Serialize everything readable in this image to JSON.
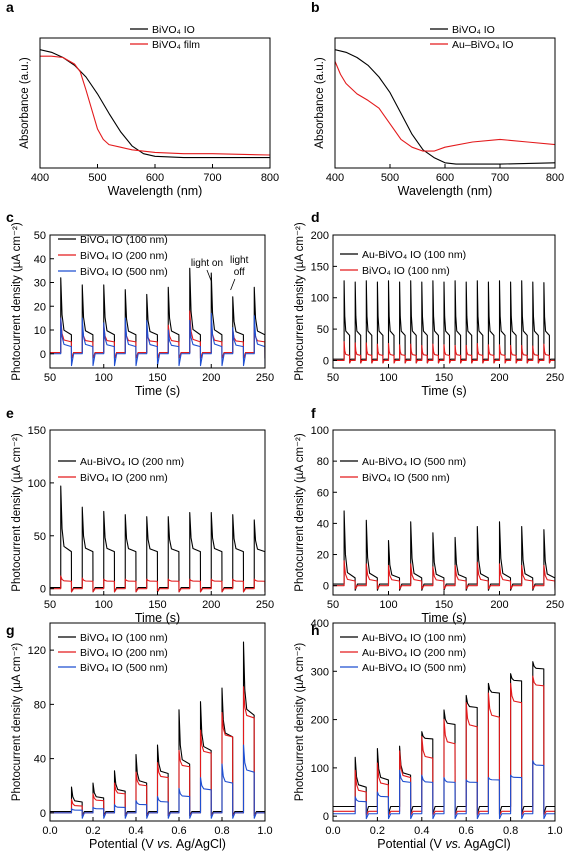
{
  "chart_data": [
    {
      "panel": "a",
      "type": "line",
      "xlabel": "Wavelength (nm)",
      "ylabel": "Absorbance (a.u.)",
      "xlim": [
        400,
        800
      ],
      "ylim": [
        0,
        1
      ],
      "xticks": [
        400,
        500,
        600,
        700,
        800
      ],
      "yticks": [],
      "legend": "top-right",
      "series": [
        {
          "name": "BiVO₄ IO",
          "color": "#000000",
          "x": [
            400,
            420,
            440,
            460,
            480,
            500,
            520,
            540,
            560,
            580,
            600,
            650,
            700,
            750,
            800
          ],
          "y": [
            0.91,
            0.89,
            0.85,
            0.79,
            0.7,
            0.57,
            0.42,
            0.28,
            0.17,
            0.11,
            0.09,
            0.08,
            0.08,
            0.08,
            0.08
          ]
        },
        {
          "name": "BiVO₄ film",
          "color": "#e31a1c",
          "x": [
            400,
            420,
            440,
            460,
            470,
            480,
            490,
            500,
            510,
            520,
            540,
            560,
            600,
            650,
            700,
            800
          ],
          "y": [
            0.86,
            0.86,
            0.85,
            0.8,
            0.74,
            0.6,
            0.45,
            0.3,
            0.22,
            0.18,
            0.16,
            0.14,
            0.12,
            0.11,
            0.11,
            0.1
          ]
        }
      ]
    },
    {
      "panel": "b",
      "type": "line",
      "xlabel": "Wavelength (nm)",
      "ylabel": "Absorbance (a.u.)",
      "xlim": [
        400,
        800
      ],
      "ylim": [
        0,
        1
      ],
      "xticks": [
        400,
        500,
        600,
        700,
        800
      ],
      "yticks": [],
      "legend": "top-right",
      "series": [
        {
          "name": "BiVO₄ IO",
          "color": "#000000",
          "x": [
            400,
            420,
            440,
            460,
            480,
            500,
            520,
            540,
            560,
            580,
            600,
            620,
            650,
            700,
            800
          ],
          "y": [
            0.91,
            0.89,
            0.85,
            0.79,
            0.7,
            0.58,
            0.42,
            0.26,
            0.14,
            0.08,
            0.04,
            0.03,
            0.03,
            0.03,
            0.04
          ]
        },
        {
          "name": "Au–BiVO₄ IO",
          "color": "#e31a1c",
          "x": [
            400,
            410,
            420,
            440,
            460,
            480,
            500,
            520,
            540,
            560,
            580,
            600,
            650,
            700,
            750,
            800
          ],
          "y": [
            0.82,
            0.72,
            0.65,
            0.57,
            0.52,
            0.46,
            0.34,
            0.22,
            0.16,
            0.13,
            0.13,
            0.16,
            0.2,
            0.22,
            0.2,
            0.18
          ]
        }
      ]
    },
    {
      "panel": "c",
      "type": "line",
      "mode": "chopped",
      "xlabel": "Time (s)",
      "ylabel": "Photocurrent density (µA cm⁻²)",
      "xlim": [
        50,
        250
      ],
      "ylim": [
        -6,
        50
      ],
      "xticks": [
        50,
        100,
        150,
        200,
        250
      ],
      "yticks": [
        0,
        10,
        20,
        30,
        40,
        50
      ],
      "legend": "top-left",
      "on_times": [
        60,
        80,
        100,
        120,
        140,
        160,
        180,
        200,
        220,
        240
      ],
      "annotations": [
        "light on",
        "light off"
      ],
      "series": [
        {
          "name": "BiVO₄ IO (100 nm)",
          "color": "#000000",
          "spike": [
            32,
            29,
            29,
            27,
            25,
            28,
            36,
            34,
            24,
            28
          ],
          "steady": 8,
          "dark": 0.5,
          "undershoot": -2
        },
        {
          "name": "BiVO₄ IO (200 nm)",
          "color": "#e31a1c",
          "spike": [
            15,
            12,
            12,
            12,
            10,
            12,
            18,
            14,
            10,
            11
          ],
          "steady": 5,
          "dark": 0.5,
          "undershoot": -2
        },
        {
          "name": "BiVO₄ IO (500 nm)",
          "color": "#1f4fd1",
          "spike": [
            15,
            15,
            13,
            15,
            14,
            10,
            14,
            17,
            11,
            16
          ],
          "steady": 3,
          "dark": 0,
          "undershoot": -5
        }
      ]
    },
    {
      "panel": "d",
      "type": "line",
      "mode": "chopped",
      "xlabel": "Time (s)",
      "ylabel": "Photocurrent density (µA cm⁻²)",
      "xlim": [
        50,
        250
      ],
      "ylim": [
        -12,
        200
      ],
      "xticks": [
        50,
        100,
        150,
        200,
        250
      ],
      "yticks": [
        0,
        50,
        100,
        150,
        200
      ],
      "legend": "top-left",
      "on_times": [
        60,
        70,
        80,
        90,
        100,
        110,
        120,
        130,
        140,
        150,
        160,
        170,
        180,
        190,
        200,
        210,
        220,
        230,
        240
      ],
      "series": [
        {
          "name": "Au-BiVO₄ IO (100 nm)",
          "color": "#000000",
          "spike": [
            127,
            125,
            127,
            125,
            127,
            125,
            127,
            125,
            127,
            125,
            127,
            125,
            127,
            125,
            127,
            125,
            127,
            125,
            124
          ],
          "steady": 40,
          "dark": 2,
          "undershoot": -4
        },
        {
          "name": "BiVO₄ IO (100 nm)",
          "color": "#e31a1c",
          "spike": [
            30,
            28,
            28,
            26,
            27,
            25,
            26,
            24,
            26,
            25,
            24,
            24,
            27,
            25,
            25,
            24,
            24,
            23,
            26
          ],
          "steady": 8,
          "dark": 0,
          "undershoot": -4
        }
      ]
    },
    {
      "panel": "e",
      "type": "line",
      "mode": "chopped",
      "xlabel": "Time (s)",
      "ylabel": "Photocurrent density (µA cm⁻²)",
      "xlim": [
        50,
        250
      ],
      "ylim": [
        -6,
        150
      ],
      "xticks": [
        50,
        100,
        150,
        200,
        250
      ],
      "yticks": [
        0,
        50,
        100,
        150
      ],
      "legend": "top-left",
      "on_times": [
        60,
        80,
        100,
        120,
        140,
        160,
        180,
        200,
        220,
        240
      ],
      "series": [
        {
          "name": "Au-BiVO₄ IO (200 nm)",
          "color": "#000000",
          "spike": [
            97,
            77,
            73,
            70,
            68,
            68,
            72,
            72,
            70,
            65
          ],
          "steady": 35,
          "dark": 1,
          "undershoot": -3
        },
        {
          "name": "BiVO₄ IO (200 nm)",
          "color": "#e31a1c",
          "spike": [
            12,
            10,
            9,
            9,
            9,
            9,
            9,
            9,
            9,
            9
          ],
          "steady": 7,
          "dark": 0,
          "undershoot": -3
        }
      ]
    },
    {
      "panel": "f",
      "type": "line",
      "mode": "chopped",
      "xlabel": "Time (s)",
      "ylabel": "Photocurrent density (µA cm⁻²)",
      "xlim": [
        50,
        250
      ],
      "ylim": [
        -6,
        100
      ],
      "xticks": [
        50,
        100,
        150,
        200,
        250
      ],
      "yticks": [
        0,
        20,
        40,
        60,
        80,
        100
      ],
      "legend": "top-left",
      "on_times": [
        60,
        80,
        100,
        120,
        140,
        160,
        180,
        200,
        220,
        240
      ],
      "series": [
        {
          "name": "Au-BiVO₄ IO (500 nm)",
          "color": "#000000",
          "spike": [
            48,
            42,
            29,
            41,
            34,
            31,
            38,
            41,
            38,
            36
          ],
          "steady": 5,
          "dark": 1,
          "undershoot": -3
        },
        {
          "name": "BiVO₄ IO (500 nm)",
          "color": "#e31a1c",
          "spike": [
            16,
            14,
            13,
            14,
            12,
            13,
            15,
            14,
            13,
            13
          ],
          "steady": 3,
          "dark": 0,
          "undershoot": -2
        }
      ]
    },
    {
      "panel": "g",
      "type": "line",
      "mode": "chopped",
      "xlabel": "Potential (V vs. Ag/AgCl)",
      "ylabel": "Photocurrent density (µA cm⁻²)",
      "xlim": [
        0,
        1.0
      ],
      "ylim": [
        -6,
        140
      ],
      "xticks": [
        0.0,
        0.2,
        0.4,
        0.6,
        0.8,
        1.0
      ],
      "yticks": [
        0,
        40,
        80,
        120
      ],
      "legend": "top-left",
      "on_times": [
        0.1,
        0.2,
        0.3,
        0.4,
        0.5,
        0.6,
        0.7,
        0.8,
        0.9
      ],
      "series": [
        {
          "name": "BiVO₄ IO (100 nm)",
          "color": "#000000",
          "spike": [
            19,
            22,
            31,
            43,
            50,
            76,
            82,
            92,
            126
          ],
          "steady_list": [
            8,
            11,
            16,
            22,
            29,
            36,
            46,
            56,
            72
          ],
          "dark": 1,
          "undershoot": -2
        },
        {
          "name": "BiVO₄ IO (200 nm)",
          "color": "#e31a1c",
          "spike": [
            10,
            14,
            22,
            30,
            37,
            46,
            61,
            74,
            93
          ],
          "steady_list": [
            5,
            9,
            14,
            20,
            26,
            34,
            44,
            56,
            70
          ],
          "dark": 0,
          "undershoot": -2
        },
        {
          "name": "BiVO₄ IO (500 nm)",
          "color": "#1f4fd1",
          "spike": [
            3,
            4,
            6,
            9,
            12,
            18,
            26,
            36,
            50
          ],
          "steady_list": [
            2,
            3,
            4,
            6,
            8,
            12,
            17,
            22,
            30
          ],
          "dark": 0,
          "undershoot": -4
        }
      ]
    },
    {
      "panel": "h",
      "type": "line",
      "mode": "chopped",
      "xlabel": "Potential (V vs. AgAgCl)",
      "ylabel": "Photocurrent density (µA cm⁻²)",
      "xlim": [
        0,
        1.0
      ],
      "ylim": [
        -10,
        400
      ],
      "xticks": [
        0.0,
        0.2,
        0.4,
        0.6,
        0.8,
        1.0
      ],
      "yticks": [
        0,
        100,
        200,
        300,
        400
      ],
      "legend": "top-left",
      "on_times": [
        0.1,
        0.2,
        0.3,
        0.4,
        0.5,
        0.6,
        0.7,
        0.8,
        0.9
      ],
      "series": [
        {
          "name": "Au-BiVO₄ IO (100 nm)",
          "color": "#000000",
          "spike": [
            122,
            140,
            145,
            175,
            220,
            250,
            275,
            295,
            320
          ],
          "steady_list": [
            60,
            75,
            85,
            160,
            190,
            225,
            255,
            280,
            305
          ],
          "dark": 20,
          "undershoot": 5
        },
        {
          "name": "Au-BiVO₄ IO (200 nm)",
          "color": "#e31a1c",
          "spike": [
            95,
            110,
            135,
            165,
            200,
            235,
            255,
            275,
            290
          ],
          "steady_list": [
            50,
            65,
            80,
            120,
            150,
            185,
            205,
            235,
            270
          ],
          "dark": 10,
          "undershoot": 2
        },
        {
          "name": "Au-BiVO₄ IO (500 nm)",
          "color": "#1f4fd1",
          "spike": [
            40,
            50,
            95,
            85,
            80,
            75,
            80,
            85,
            115
          ],
          "steady_list": [
            30,
            40,
            70,
            70,
            70,
            70,
            75,
            80,
            105
          ],
          "dark": 5,
          "undershoot": -5
        }
      ]
    }
  ]
}
